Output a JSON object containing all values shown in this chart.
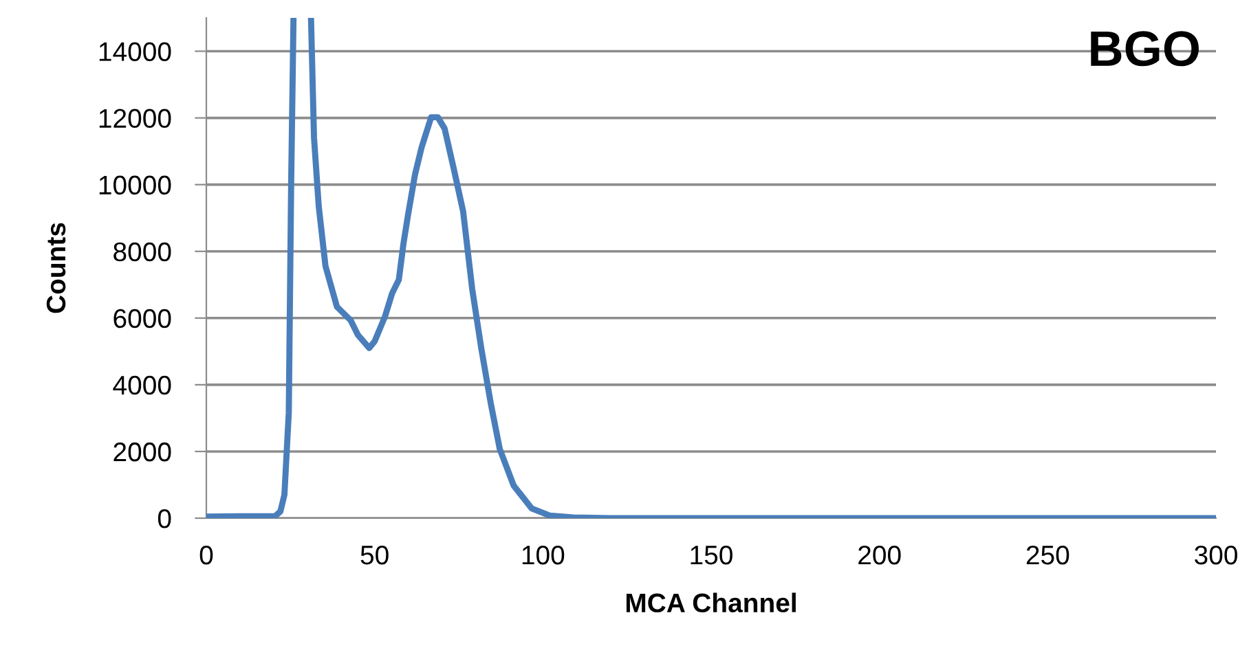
{
  "chart_data": {
    "type": "line",
    "xlabel": "MCA Channel",
    "ylabel": "Counts",
    "annotations": [
      "BGO"
    ],
    "series": [
      {
        "color": "#4a7ebb",
        "x": [
          0,
          10,
          20.4,
          22,
          23.2,
          24.5,
          25.2,
          25.9
        ],
        "values": [
          50,
          60,
          60,
          200,
          700,
          3170,
          10000,
          15000
        ]
      },
      {
        "color": "#4a7ebb",
        "x": [
          31.1,
          32.0,
          33.4,
          35.4,
          38.8,
          42.9,
          45,
          48.4,
          50,
          53.1,
          55.2,
          57.2,
          58.6,
          59.9,
          62,
          64,
          66.8,
          68.8,
          70.8,
          73.6,
          76.3,
          79,
          81.7,
          84.5,
          87.2,
          91.3,
          96.7,
          102,
          109,
          120,
          150,
          200,
          250,
          300
        ],
        "values": [
          15000,
          11400,
          9350,
          7560,
          6340,
          5930,
          5500,
          5100,
          5300,
          6050,
          6740,
          7150,
          8250,
          9070,
          10300,
          11130,
          12020,
          12020,
          11680,
          10440,
          9200,
          6870,
          5090,
          3450,
          2070,
          980,
          290,
          80,
          20,
          0,
          0,
          0,
          0,
          0
        ]
      }
    ],
    "xlim": [
      0,
      300
    ],
    "xticks": [
      0,
      50,
      100,
      150,
      200,
      250,
      300
    ],
    "ylim": [
      0,
      15000
    ],
    "yticks": [
      0,
      2000,
      4000,
      6000,
      8000,
      10000,
      12000,
      14000
    ],
    "grid": "y",
    "marker": "none",
    "line_style": "solid"
  }
}
